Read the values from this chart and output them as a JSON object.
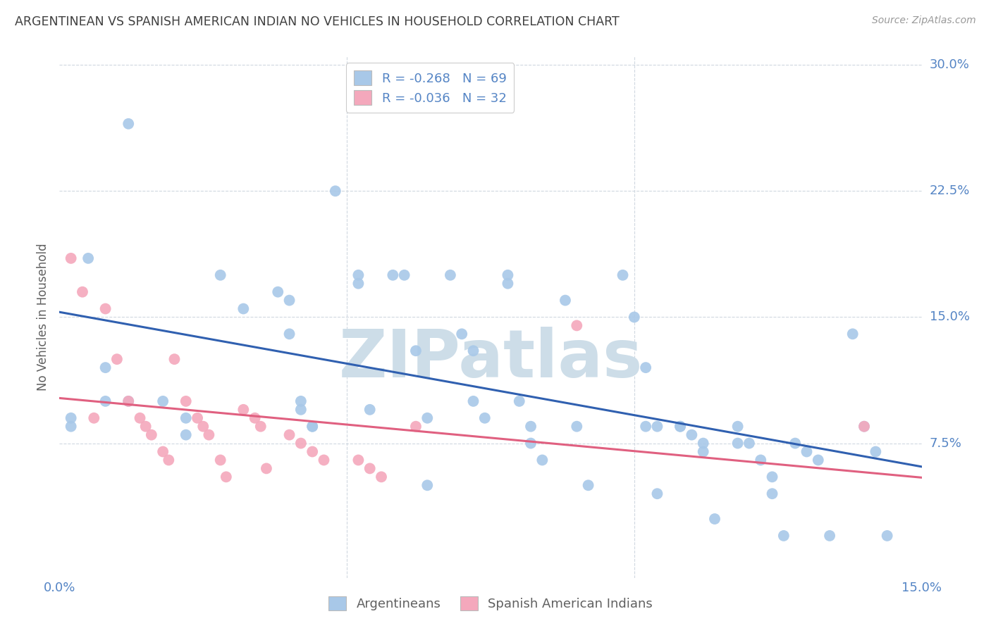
{
  "title": "ARGENTINEAN VS SPANISH AMERICAN INDIAN NO VEHICLES IN HOUSEHOLD CORRELATION CHART",
  "source": "Source: ZipAtlas.com",
  "ylabel": "No Vehicles in Household",
  "xlim": [
    0.0,
    0.15
  ],
  "ylim": [
    -0.005,
    0.305
  ],
  "yticks_right": [
    0.075,
    0.15,
    0.225,
    0.3
  ],
  "ytick_labels_right": [
    "7.5%",
    "15.0%",
    "22.5%",
    "30.0%"
  ],
  "legend_labels": [
    "Argentineans",
    "Spanish American Indians"
  ],
  "blue_color": "#a8c8e8",
  "pink_color": "#f4a8bc",
  "blue_line_color": "#3060b0",
  "pink_line_color": "#e06080",
  "blue_r": -0.268,
  "blue_n": 69,
  "pink_r": -0.036,
  "pink_n": 32,
  "blue_scatter_x": [
    0.005,
    0.012,
    0.012,
    0.002,
    0.002,
    0.008,
    0.008,
    0.018,
    0.022,
    0.022,
    0.028,
    0.032,
    0.038,
    0.04,
    0.04,
    0.042,
    0.042,
    0.044,
    0.044,
    0.048,
    0.052,
    0.052,
    0.054,
    0.058,
    0.06,
    0.062,
    0.064,
    0.064,
    0.068,
    0.07,
    0.072,
    0.072,
    0.074,
    0.078,
    0.078,
    0.08,
    0.082,
    0.082,
    0.084,
    0.088,
    0.09,
    0.092,
    0.098,
    0.1,
    0.102,
    0.102,
    0.104,
    0.104,
    0.108,
    0.108,
    0.11,
    0.112,
    0.112,
    0.114,
    0.118,
    0.118,
    0.12,
    0.122,
    0.124,
    0.124,
    0.126,
    0.128,
    0.13,
    0.132,
    0.134,
    0.138,
    0.14,
    0.142,
    0.144
  ],
  "blue_scatter_y": [
    0.185,
    0.265,
    0.1,
    0.09,
    0.085,
    0.1,
    0.12,
    0.1,
    0.09,
    0.08,
    0.175,
    0.155,
    0.165,
    0.16,
    0.14,
    0.1,
    0.095,
    0.085,
    0.085,
    0.225,
    0.175,
    0.17,
    0.095,
    0.175,
    0.175,
    0.13,
    0.09,
    0.05,
    0.175,
    0.14,
    0.13,
    0.1,
    0.09,
    0.175,
    0.17,
    0.1,
    0.085,
    0.075,
    0.065,
    0.16,
    0.085,
    0.05,
    0.175,
    0.15,
    0.12,
    0.085,
    0.085,
    0.045,
    0.085,
    0.085,
    0.08,
    0.075,
    0.07,
    0.03,
    0.085,
    0.075,
    0.075,
    0.065,
    0.055,
    0.045,
    0.02,
    0.075,
    0.07,
    0.065,
    0.02,
    0.14,
    0.085,
    0.07,
    0.02
  ],
  "pink_scatter_x": [
    0.002,
    0.004,
    0.006,
    0.008,
    0.01,
    0.012,
    0.014,
    0.015,
    0.016,
    0.018,
    0.019,
    0.02,
    0.022,
    0.024,
    0.025,
    0.026,
    0.028,
    0.029,
    0.032,
    0.034,
    0.035,
    0.036,
    0.04,
    0.042,
    0.044,
    0.046,
    0.052,
    0.054,
    0.056,
    0.062,
    0.09,
    0.14
  ],
  "pink_scatter_y": [
    0.185,
    0.165,
    0.09,
    0.155,
    0.125,
    0.1,
    0.09,
    0.085,
    0.08,
    0.07,
    0.065,
    0.125,
    0.1,
    0.09,
    0.085,
    0.08,
    0.065,
    0.055,
    0.095,
    0.09,
    0.085,
    0.06,
    0.08,
    0.075,
    0.07,
    0.065,
    0.065,
    0.06,
    0.055,
    0.085,
    0.145,
    0.085
  ],
  "watermark": "ZIPatlas",
  "watermark_color": "#cddde8",
  "background_color": "#ffffff",
  "grid_color": "#d0d8e0",
  "title_color": "#404040",
  "axis_label_color": "#5585c5",
  "tick_color": "#5585c5"
}
